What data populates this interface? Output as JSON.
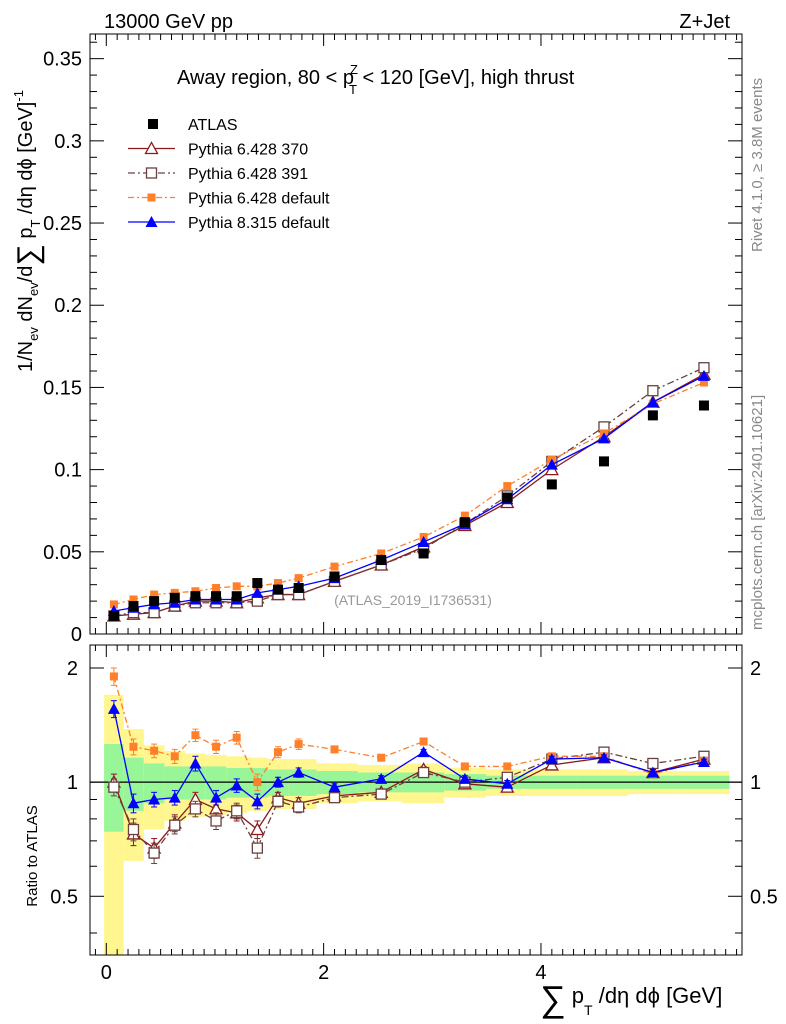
{
  "header": {
    "energy_label": "13000 GeV pp",
    "process_label": "Z+Jet"
  },
  "side_labels": {
    "rivet": "Rivet 4.1.0, ≥ 3.8M events",
    "mcplots": "mcplots.cern.ch [arXiv:2401.10621]"
  },
  "chart_data": {
    "type": "line",
    "title": "Away region, 80 < pTZ < 120 [GeV], high thrust",
    "title_parts": {
      "pre": "Away region, 80 < p",
      "sup": "Z",
      "sub": "T",
      "post": " < 120 [GeV], high thrust"
    },
    "analysis_id": "(ATLAS_2019_I1736531)",
    "ylabel_parts": {
      "a": "1/N",
      "b": "ev",
      "c": " dN",
      "d": "ev",
      "e": "/d",
      "sum": "∑",
      "f": " p",
      "g": "T",
      "h": " /dη dϕ  [GeV]",
      "i": "-1"
    },
    "xlabel_parts": {
      "sum": "∑",
      "p": " p",
      "sub": "T",
      "rest": " /dη dϕ [GeV]"
    },
    "ratio_ylabel": "Ratio to ATLAS",
    "xlim": [
      -0.15,
      5.85
    ],
    "ylim_main": [
      0,
      0.365
    ],
    "ylim_ratio": [
      0.35,
      2.3
    ],
    "x_ticks": [
      0,
      2,
      4
    ],
    "y_ticks_main": [
      "0",
      "0.05",
      "0.1",
      "0.15",
      "0.2",
      "0.25",
      "0.3",
      "0.35"
    ],
    "y_ticks_ratio": [
      "0.5",
      "1",
      "2"
    ],
    "x": [
      0.07,
      0.25,
      0.44,
      0.63,
      0.82,
      1.01,
      1.2,
      1.39,
      1.58,
      1.77,
      2.1,
      2.53,
      2.92,
      3.3,
      3.69,
      4.1,
      4.58,
      5.03,
      5.5
    ],
    "data": {
      "name": "ATLAS",
      "values": [
        0.011,
        0.017,
        0.02,
        0.022,
        0.023,
        0.023,
        0.023,
        0.031,
        0.027,
        0.028,
        0.035,
        0.045,
        0.049,
        0.068,
        0.083,
        0.091,
        0.105,
        0.133,
        0.139
      ]
    },
    "band_inner": [
      0.26,
      0.16,
      0.12,
      0.1,
      0.1,
      0.1,
      0.09,
      0.09,
      0.08,
      0.08,
      0.07,
      0.06,
      0.06,
      0.05,
      0.04,
      0.04,
      0.04,
      0.04,
      0.04
    ],
    "band_outer": [
      0.7,
      0.38,
      0.25,
      0.21,
      0.19,
      0.18,
      0.17,
      0.16,
      0.15,
      0.15,
      0.12,
      0.11,
      0.12,
      0.09,
      0.08,
      0.08,
      0.08,
      0.07,
      0.07
    ],
    "series": [
      {
        "name": "Pythia 6.428 370",
        "color": "#8b1a1a",
        "dash": "",
        "marker": "triangle-open",
        "values": [
          0.011,
          0.012,
          0.013,
          0.017,
          0.02,
          0.02,
          0.019,
          0.022,
          0.024,
          0.024,
          0.032,
          0.042,
          0.053,
          0.066,
          0.08,
          0.1,
          0.12,
          0.141,
          0.158
        ],
        "ratio": [
          1.0,
          0.73,
          0.67,
          0.78,
          0.9,
          0.85,
          0.83,
          0.75,
          0.91,
          0.88,
          0.92,
          0.94,
          1.08,
          0.99,
          0.97,
          1.11,
          1.16,
          1.06,
          1.15
        ],
        "ratio_err": [
          0.05,
          0.05,
          0.04,
          0.04,
          0.04,
          0.04,
          0.04,
          0.04,
          0.03,
          0.03,
          0.02,
          0.02,
          0.02,
          0.02,
          0.02,
          0.02,
          0.02,
          0.02,
          0.02
        ]
      },
      {
        "name": "Pythia 6.428 391",
        "color": "#6b4040",
        "dash": "7,3,2,3",
        "marker": "square-open",
        "values": [
          0.011,
          0.013,
          0.013,
          0.017,
          0.019,
          0.019,
          0.019,
          0.02,
          0.024,
          0.024,
          0.032,
          0.042,
          0.052,
          0.067,
          0.084,
          0.105,
          0.126,
          0.148,
          0.162
        ],
        "ratio": [
          0.97,
          0.75,
          0.65,
          0.77,
          0.85,
          0.79,
          0.84,
          0.67,
          0.89,
          0.86,
          0.91,
          0.93,
          1.06,
          1.0,
          1.03,
          1.15,
          1.2,
          1.12,
          1.17
        ],
        "ratio_err": [
          0.05,
          0.05,
          0.04,
          0.04,
          0.04,
          0.04,
          0.04,
          0.04,
          0.03,
          0.03,
          0.02,
          0.02,
          0.02,
          0.02,
          0.02,
          0.02,
          0.02,
          0.02,
          0.02
        ]
      },
      {
        "name": "Pythia 6.428 default",
        "color": "#ff7f2a",
        "dash": "6,3,2,3",
        "marker": "square-filled",
        "values": [
          0.018,
          0.021,
          0.024,
          0.025,
          0.026,
          0.028,
          0.029,
          0.029,
          0.031,
          0.034,
          0.041,
          0.049,
          0.059,
          0.072,
          0.09,
          0.106,
          0.122,
          0.14,
          0.153
        ],
        "ratio": [
          1.9,
          1.24,
          1.21,
          1.17,
          1.33,
          1.24,
          1.31,
          1.0,
          1.2,
          1.26,
          1.22,
          1.16,
          1.28,
          1.1,
          1.1,
          1.17,
          1.17,
          1.05,
          1.14
        ],
        "ratio_err": [
          0.1,
          0.06,
          0.05,
          0.05,
          0.05,
          0.05,
          0.05,
          0.05,
          0.04,
          0.04,
          0.02,
          0.02,
          0.02,
          0.02,
          0.02,
          0.02,
          0.02,
          0.02,
          0.02
        ]
      },
      {
        "name": "Pythia 8.315 default",
        "color": "#0000ff",
        "dash": "",
        "marker": "triangle-filled",
        "values": [
          0.014,
          0.016,
          0.018,
          0.019,
          0.021,
          0.021,
          0.021,
          0.025,
          0.027,
          0.029,
          0.034,
          0.045,
          0.056,
          0.067,
          0.082,
          0.103,
          0.119,
          0.141,
          0.157
        ],
        "ratio": [
          1.56,
          0.88,
          0.9,
          0.91,
          1.12,
          0.91,
          0.98,
          0.89,
          1.0,
          1.06,
          0.97,
          1.02,
          1.2,
          1.02,
          0.99,
          1.15,
          1.16,
          1.06,
          1.13
        ],
        "ratio_err": [
          0.08,
          0.05,
          0.04,
          0.04,
          0.05,
          0.04,
          0.04,
          0.04,
          0.03,
          0.03,
          0.02,
          0.02,
          0.02,
          0.02,
          0.02,
          0.02,
          0.02,
          0.02,
          0.02
        ]
      }
    ]
  }
}
